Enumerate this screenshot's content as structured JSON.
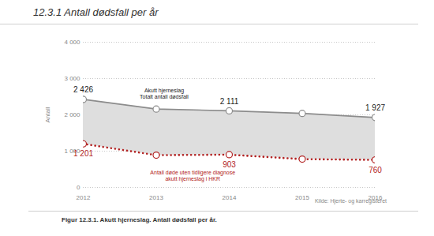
{
  "chart_data": {
    "type": "line",
    "title": "12.3.1 Antall dødsfall per år",
    "y_label": "Antall",
    "caption": "Figur 12.3.1. Akutt hjerneslag. Antall dødsfall per år.",
    "source": "Kilde: Hjerte- og karregisteret",
    "x": [
      2012,
      2013,
      2014,
      2015,
      2016
    ],
    "xlim": [
      2012,
      2016
    ],
    "xticks": [
      2012,
      2013,
      2014,
      2015,
      2016
    ],
    "ylim": [
      0,
      4000
    ],
    "yticks": [
      0,
      {
        "value": 1000,
        "label": "1 000"
      },
      {
        "value": 2000,
        "label": "2 000"
      },
      {
        "value": 3000,
        "label": "3 000"
      },
      {
        "value": 4000,
        "label": "4 000"
      }
    ],
    "grid": true,
    "data_labels": true,
    "series": [
      {
        "name": "Akutt hjerneslag\nTotalt antall dødsfall",
        "color": "#8c8c8c",
        "marker": "circle",
        "line_style": "solid",
        "values": [
          2426,
          2160,
          2111,
          2040,
          1927
        ],
        "value_labels": [
          "2 426",
          null,
          "2 111",
          null,
          "1 927"
        ]
      },
      {
        "name": "Antall døde uten tidligere diagnose\nakutt hjerneslag i HKR",
        "color": "#b22222",
        "marker": "circle",
        "line_style": "dotted",
        "values": [
          1201,
          890,
          903,
          780,
          760
        ],
        "value_labels": [
          "1 201",
          null,
          "903",
          null,
          "760"
        ]
      }
    ]
  }
}
